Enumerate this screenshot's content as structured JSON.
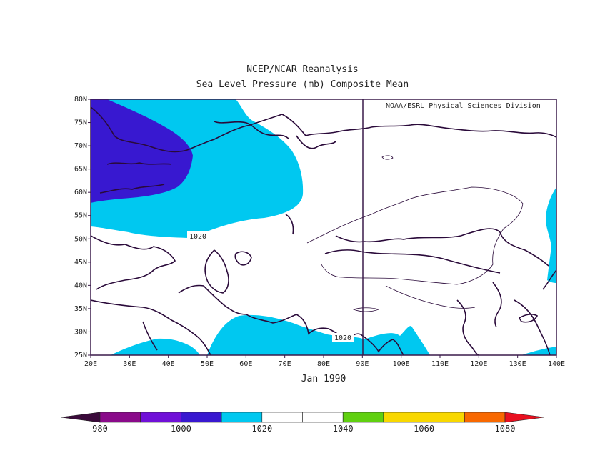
{
  "title": "NCEP/NCAR Reanalysis",
  "subtitle": "Sea Level Pressure (mb) Composite Mean",
  "credit": "NOAA/ESRL Physical Sciences Division",
  "period": "Jan 1990",
  "map": {
    "lon_range": [
      20,
      140
    ],
    "lat_range": [
      25,
      80
    ],
    "lon_ticks": [
      "20E",
      "30E",
      "40E",
      "50E",
      "60E",
      "70E",
      "80E",
      "90E",
      "100E",
      "110E",
      "120E",
      "130E",
      "140E"
    ],
    "lat_ticks": [
      "25N",
      "30N",
      "35N",
      "40N",
      "45N",
      "50N",
      "55N",
      "60N",
      "65N",
      "70N",
      "75N",
      "80N"
    ],
    "contour_labels": [
      "1020",
      "1020"
    ]
  },
  "colorbar": {
    "labels": [
      "980",
      "1000",
      "1020",
      "1040",
      "1060",
      "1080"
    ],
    "bins": [
      "#3a0a3a",
      "#8a0a8a",
      "#7010d8",
      "#3818d0",
      "#00c8f0",
      "#ffffff",
      "#ffffff",
      "#60d010",
      "#f8d800",
      "#f8d800",
      "#f86800",
      "#e81020"
    ]
  },
  "colors": {
    "frame": "#3a1a4a",
    "coast": "#2a0a3a",
    "level_1000_1010": "#3818d0",
    "level_1010_1020": "#00c8f0"
  }
}
